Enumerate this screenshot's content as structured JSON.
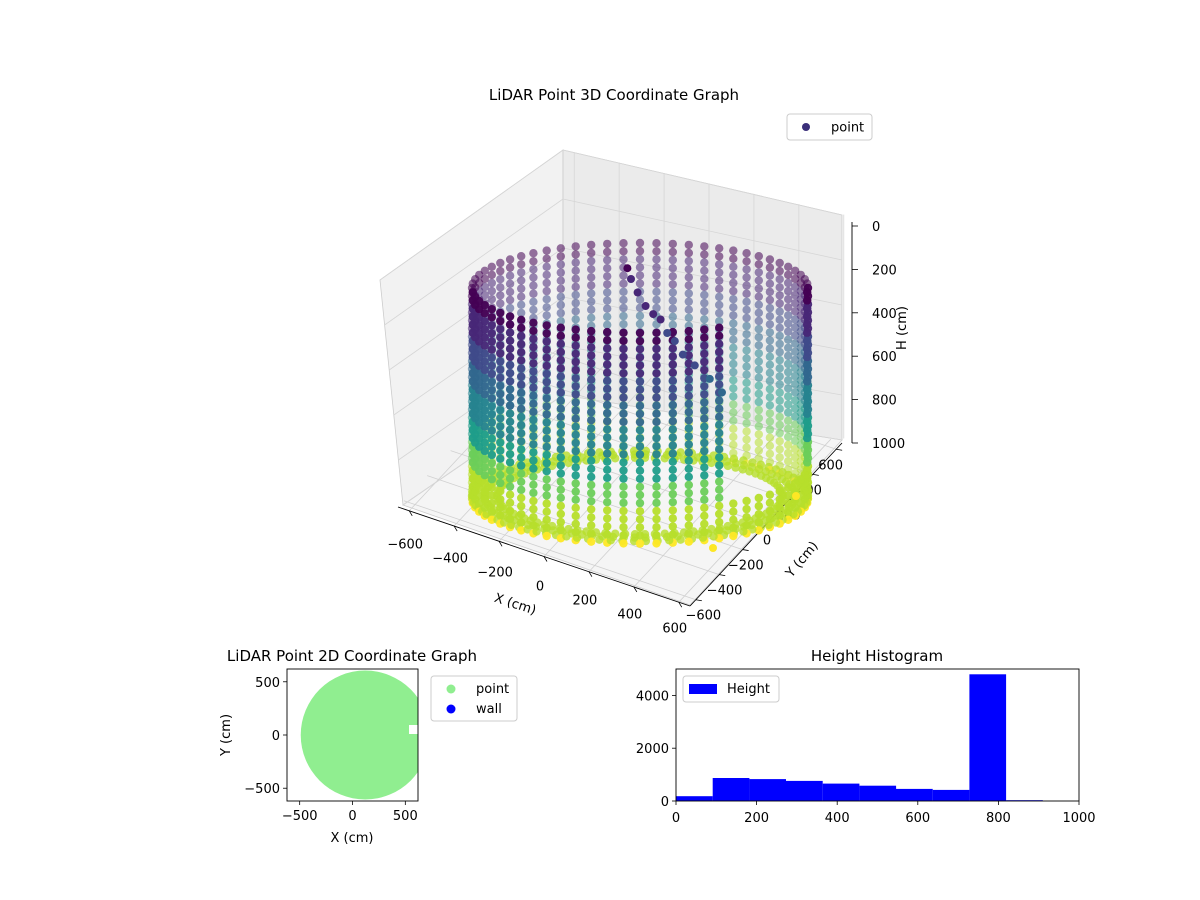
{
  "chart_data": [
    {
      "type": "scatter",
      "projection": "3d",
      "title": "LiDAR Point 3D Coordinate Graph",
      "xlabel": "X (cm)",
      "ylabel": "Y (cm)",
      "zlabel": "H (cm)",
      "xlim": [
        -650,
        650
      ],
      "ylim": [
        -650,
        650
      ],
      "zlim": [
        1000,
        0
      ],
      "xticks": [
        -600,
        -400,
        -200,
        0,
        200,
        400,
        600
      ],
      "yticks": [
        -600,
        -400,
        -200,
        0,
        200,
        400,
        600
      ],
      "zticks": [
        0,
        200,
        400,
        600,
        800,
        1000
      ],
      "legend": {
        "entries": [
          "point"
        ],
        "placement": "top-right"
      },
      "colormap": "viridis",
      "marker_color": "#3b2f7a",
      "grid": true,
      "description_data": {
        "wall_radius": 590,
        "wall_height_range": [
          0,
          780
        ],
        "wall_gap_angle_deg": [
          -62,
          -12
        ],
        "floor_height": 800,
        "stray_points": [
          {
            "x": 15,
            "y": 180,
            "h": 60
          },
          {
            "x": 25,
            "y": 195,
            "h": 100
          },
          {
            "x": 45,
            "y": 210,
            "h": 150
          },
          {
            "x": 70,
            "y": 225,
            "h": 200
          },
          {
            "x": 95,
            "y": 235,
            "h": 230
          },
          {
            "x": 120,
            "y": 250,
            "h": 250
          },
          {
            "x": 140,
            "y": 230,
            "h": 300
          },
          {
            "x": 165,
            "y": 240,
            "h": 330
          },
          {
            "x": 190,
            "y": 220,
            "h": 380
          },
          {
            "x": 230,
            "y": 210,
            "h": 420
          },
          {
            "x": 280,
            "y": 175,
            "h": 470
          },
          {
            "x": 320,
            "y": 140,
            "h": 520
          }
        ],
        "outliers": [
          {
            "x": 640,
            "y": -520,
            "h": 900,
            "color": "#fde725"
          },
          {
            "x": 560,
            "y": 80,
            "h": 850,
            "color": "#fde725"
          }
        ]
      }
    },
    {
      "type": "scatter",
      "title": "LiDAR Point 2D Coordinate Graph",
      "xlabel": "X (cm)",
      "ylabel": "Y (cm)",
      "xlim": [
        -620,
        620
      ],
      "ylim": [
        -620,
        620
      ],
      "xticks": [
        -500,
        0,
        500
      ],
      "yticks": [
        -500,
        0,
        500
      ],
      "series": [
        {
          "name": "point",
          "color": "#90ee90",
          "shape": "disc",
          "center": [
            0,
            0
          ],
          "radius": 610
        },
        {
          "name": "wall",
          "color": "#0000ff",
          "points": []
        }
      ],
      "legend": {
        "entries": [
          "point",
          "wall"
        ],
        "placement": "outside-right"
      },
      "grid": false
    },
    {
      "type": "bar",
      "subtype": "histogram",
      "title": "Height Histogram",
      "xlim": [
        0,
        1000
      ],
      "ylim": [
        0,
        5000
      ],
      "xticks": [
        0,
        200,
        400,
        600,
        800,
        1000
      ],
      "yticks": [
        0,
        2000,
        4000
      ],
      "bin_edges": [
        0,
        91,
        182,
        273,
        364,
        455,
        546,
        637,
        728,
        819,
        910
      ],
      "values": [
        180,
        870,
        830,
        760,
        660,
        580,
        460,
        420,
        4800,
        30
      ],
      "color": "#0000ff",
      "legend": {
        "entries": [
          "Height"
        ],
        "placement": "upper-left"
      },
      "grid": false
    }
  ]
}
